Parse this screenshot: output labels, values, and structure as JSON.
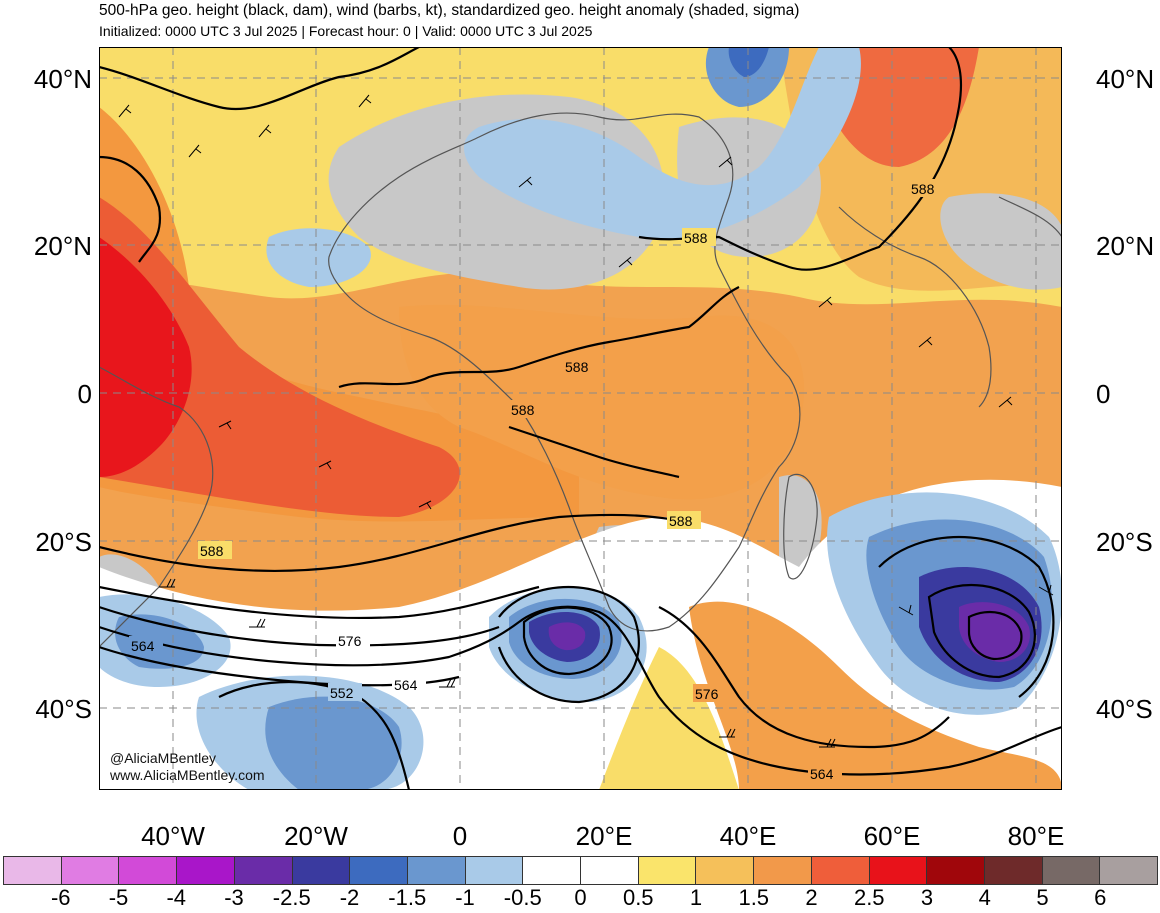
{
  "header": {
    "title": "500-hPa geo. height (black, dam), wind (barbs, kt), standardized geo. height anomaly (shaded, sigma)",
    "subtitle": "Initialized: 0000 UTC 3 Jul 2025 | Forecast hour: 0 | Valid: 0000 UTC 3 Jul 2025"
  },
  "axes": {
    "lat_left": [
      "40°N",
      "20°N",
      "0",
      "20°S",
      "40°S"
    ],
    "lat_right": [
      "40°N",
      "20°N",
      "0",
      "20°S",
      "40°S"
    ],
    "lon": [
      "40°W",
      "20°W",
      "0",
      "20°E",
      "40°E",
      "60°E",
      "80°E"
    ]
  },
  "contour_labels": [
    "588",
    "588",
    "588",
    "588",
    "588",
    "588",
    "564",
    "576",
    "564",
    "552",
    "576",
    "564"
  ],
  "credits": {
    "twitter": "@AliciaMBentley",
    "website": "www.AliciaMBentley.com"
  },
  "legend": {
    "colors": [
      "#e9b8e8",
      "#e07ce3",
      "#d24ad8",
      "#a916c9",
      "#6a2ca8",
      "#3a3a9f",
      "#3d6bbf",
      "#6a97cf",
      "#a9cae8",
      "#ffffff",
      "#ffffff",
      "#fae46b",
      "#f5c05a",
      "#f2994a",
      "#ef5e3a",
      "#e8121a",
      "#a0060b",
      "#6e2a2a",
      "#776966",
      "#a89f9f"
    ],
    "ticks": [
      "-6",
      "-5",
      "-4",
      "-3",
      "-2.5",
      "-2",
      "-1.5",
      "-1",
      "-0.5",
      "0",
      "0.5",
      "1",
      "1.5",
      "2",
      "2.5",
      "3",
      "4",
      "5",
      "6"
    ]
  }
}
